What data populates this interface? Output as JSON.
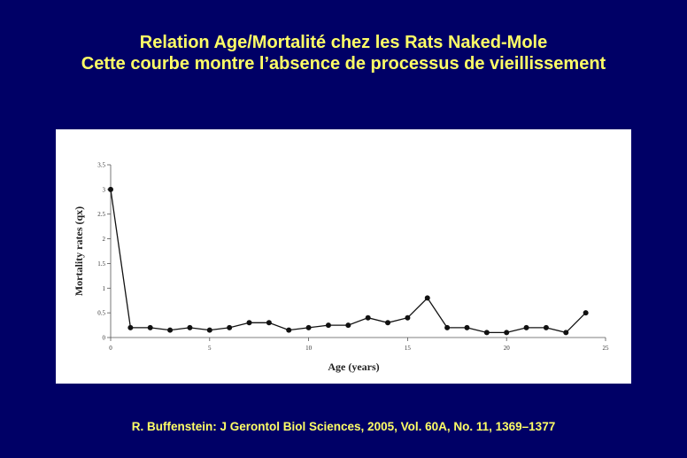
{
  "slide": {
    "title_line1": "Relation Age/Mortalité chez les Rats Naked-Mole",
    "title_line2": "Cette courbe montre l’absence de processus de vieillissement",
    "citation": "R. Buffenstein: J Gerontol Biol Sciences, 2005, Vol. 60A, No. 11, 1369–1377",
    "background_color": "#000066",
    "text_color": "#ffff66"
  },
  "chart_data": {
    "type": "line",
    "title": "",
    "xlabel": "Age (years)",
    "ylabel": "Mortality rates (qx)",
    "xlim": [
      0,
      25
    ],
    "ylim": [
      0,
      3.5
    ],
    "x_ticks": [
      0,
      5,
      10,
      15,
      20,
      25
    ],
    "x_tick_labels": [
      "0",
      "5",
      "10",
      "15",
      "20",
      "25"
    ],
    "y_ticks": [
      0,
      0.5,
      1,
      1.5,
      2,
      2.5,
      3,
      3.5
    ],
    "y_tick_labels": [
      "0",
      "0.5",
      "1",
      "1.5",
      "2",
      "2.5",
      "3",
      "3.5"
    ],
    "grid": false,
    "legend": "none",
    "series": [
      {
        "color": "#111111",
        "x": [
          0,
          1,
          2,
          3,
          4,
          5,
          6,
          7,
          8,
          9,
          10,
          11,
          12,
          13,
          14,
          15,
          16,
          17,
          18,
          19,
          20,
          21,
          22,
          23,
          24
        ],
        "y": [
          3.0,
          0.2,
          0.2,
          0.15,
          0.2,
          0.15,
          0.2,
          0.3,
          0.3,
          0.15,
          0.2,
          0.25,
          0.25,
          0.4,
          0.3,
          0.4,
          0.8,
          0.2,
          0.2,
          0.1,
          0.1,
          0.2,
          0.2,
          0.1,
          0.5
        ]
      }
    ]
  }
}
